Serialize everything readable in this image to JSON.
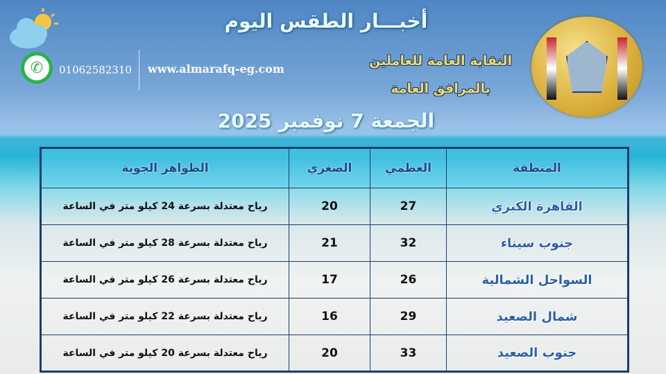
{
  "header": {
    "title": "أخبـــار الطقس اليوم",
    "org_line1": "النقابة العامة للعاملين",
    "org_line2": "بالمرافق العامة",
    "date": "الجمعة 7 نوفمبر 2025",
    "phone": "01062582310",
    "website": "www.almarafq-eg.com"
  },
  "table": {
    "columns": [
      "المنطقة",
      "العظمي",
      "الصغري",
      "الظواهر الجوية"
    ],
    "rows": [
      {
        "region": "القاهرة الكبري",
        "max": "27",
        "min": "20",
        "weather": "رياح معتدلة بسرعة 24 كيلو متر في الساعة"
      },
      {
        "region": "جنوب سيناء",
        "max": "32",
        "min": "21",
        "weather": "رياح معتدلة بسرعة 28 كيلو متر في الساعة"
      },
      {
        "region": "السواحل الشمالية",
        "max": "26",
        "min": "17",
        "weather": "رياح معتدلة بسرعة 26 كيلو متر في الساعة"
      },
      {
        "region": "شمال الصعيد",
        "max": "29",
        "min": "16",
        "weather": "رياح معتدلة بسرعة 22 كيلو متر في الساعة"
      },
      {
        "region": "جنوب الصعيد",
        "max": "33",
        "min": "20",
        "weather": "رياح معتدلة بسرعة 20 كيلو متر في الساعة"
      }
    ]
  }
}
